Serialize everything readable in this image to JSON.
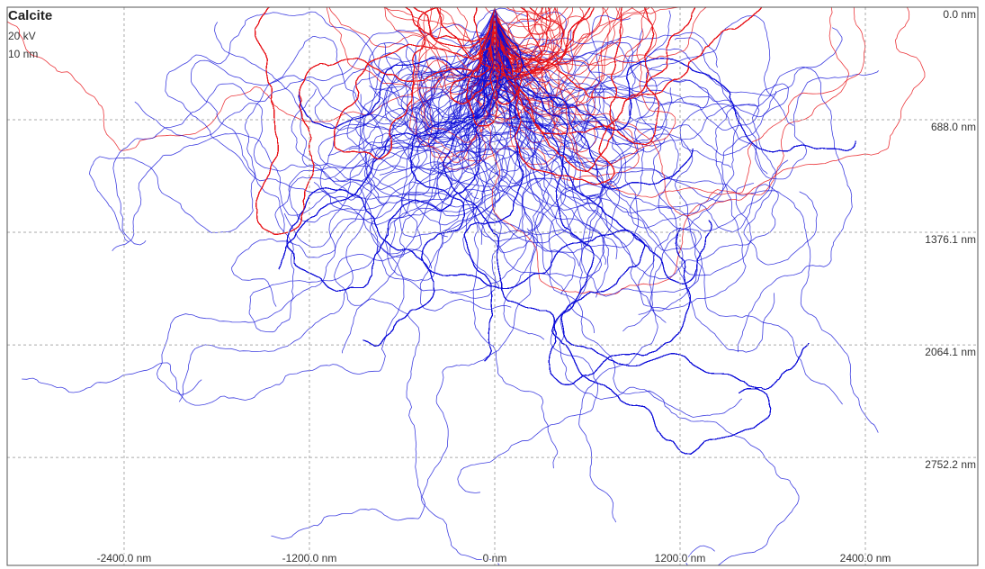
{
  "chart_data": {
    "type": "trajectory",
    "title": "Calcite",
    "annotations": [
      "20 kV",
      "10 nm"
    ],
    "xlim": [
      -3157,
      3128
    ],
    "ylim": [
      0,
      3412
    ],
    "xticks": [
      {
        "value": -2400,
        "label": "-2400.0 nm"
      },
      {
        "value": -1200,
        "label": "-1200.0 nm"
      },
      {
        "value": 0,
        "label": "0 nm"
      },
      {
        "value": 1200,
        "label": "1200.0 nm"
      },
      {
        "value": 2400,
        "label": "2400.0 nm"
      }
    ],
    "yticks": [
      {
        "value": 0,
        "label": "0.0 nm"
      },
      {
        "value": 688,
        "label": "688.0 nm"
      },
      {
        "value": 1376.1,
        "label": "1376.1 nm"
      },
      {
        "value": 2064.1,
        "label": "2064.1 nm"
      },
      {
        "value": 2752.2,
        "label": "2752.2 nm"
      }
    ],
    "grid": true
  }
}
